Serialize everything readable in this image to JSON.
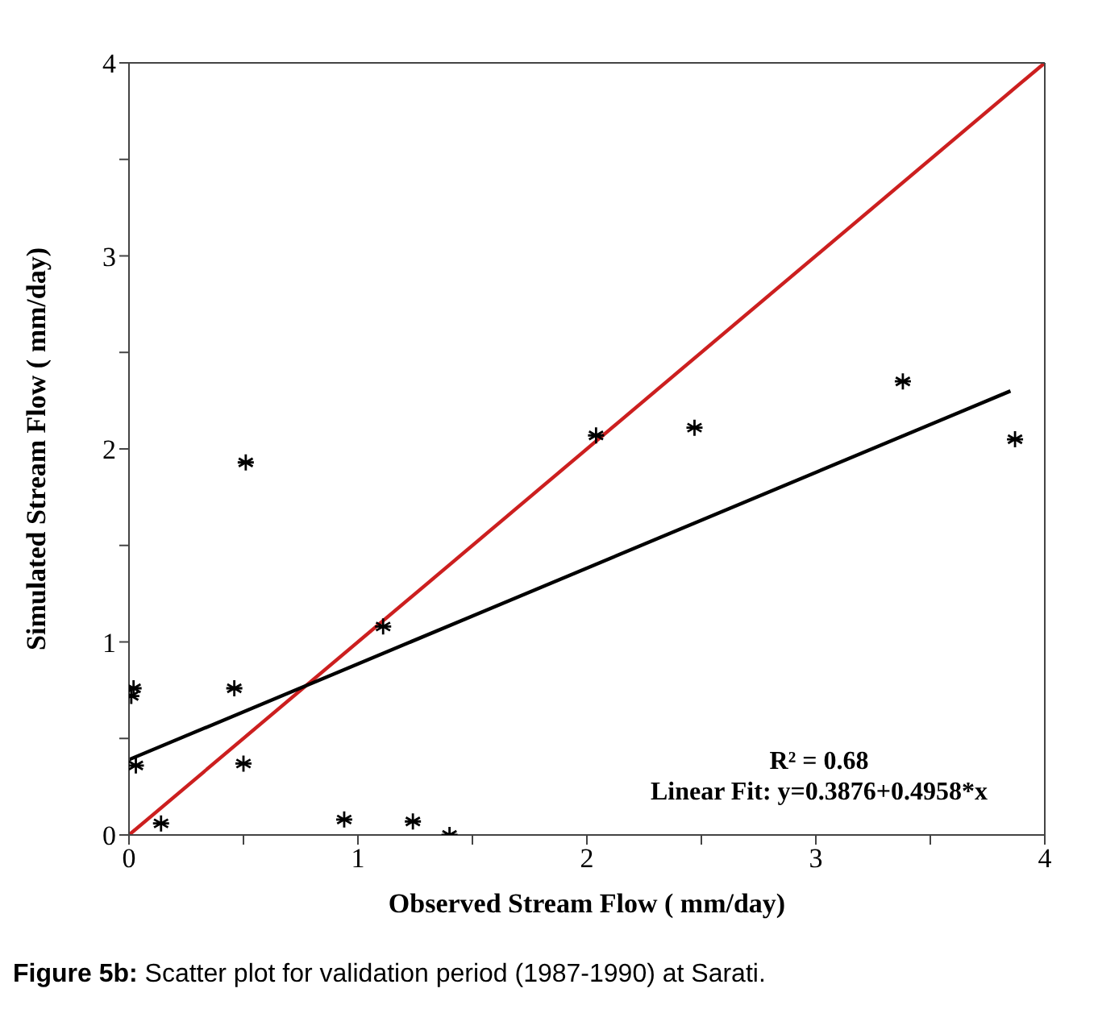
{
  "chart_data": {
    "type": "scatter",
    "xlabel": "Observed Stream Flow ( mm/day)",
    "ylabel": "Simulated Stream Flow ( mm/day)",
    "xlim": [
      0,
      4
    ],
    "ylim": [
      0,
      4
    ],
    "xticks": [
      0,
      {
        "value": 0.5,
        "label": null
      },
      1,
      {
        "value": 1.5,
        "label": null
      },
      2,
      {
        "value": 2.5,
        "label": null
      },
      3,
      {
        "value": 3.5,
        "label": null
      },
      4
    ],
    "yticks": [
      0,
      {
        "value": 0.5,
        "label": null
      },
      1,
      {
        "value": 1.5,
        "label": null
      },
      2,
      {
        "value": 2.5,
        "label": null
      },
      3,
      {
        "value": 3.5,
        "label": null
      },
      4
    ],
    "series": [
      {
        "marker": "cross",
        "color": "#000000",
        "x": [
          0.02,
          0.01,
          0.46,
          0.03,
          0.5,
          0.14,
          0.94,
          1.24,
          1.4,
          1.11,
          0.51,
          2.04,
          2.47,
          3.38,
          3.87
        ],
        "values": [
          0.76,
          0.72,
          0.76,
          0.36,
          0.37,
          0.06,
          0.08,
          0.07,
          0.0,
          1.08,
          1.93,
          2.07,
          2.11,
          2.35,
          2.05
        ]
      },
      {
        "type": "line",
        "color": "#cc1f1f",
        "x": [
          0,
          4
        ],
        "values": [
          0,
          4
        ],
        "line_style": "solid"
      },
      {
        "type": "line",
        "color": "#000000",
        "x": [
          0,
          3.85
        ],
        "values": [
          0.39,
          2.3
        ],
        "line_style": "solid"
      }
    ],
    "annotations": [
      "R² = 0.68",
      "Linear Fit: y=0.3876+0.4958*x",
      "Figure 5b: Scatter plot for validation period (1987-1990) at Sarati."
    ]
  }
}
